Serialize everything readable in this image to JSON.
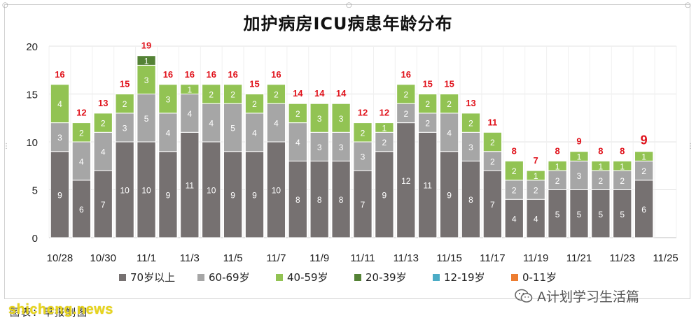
{
  "chart_data": {
    "type": "bar",
    "stacked": true,
    "title": "加护病房ICU病患年龄分布",
    "xlabel": "",
    "ylabel": "",
    "ylim": [
      0,
      20
    ],
    "yticks": [
      0,
      5,
      10,
      15,
      20
    ],
    "grid": true,
    "legend_position": "bottom",
    "categories": [
      "10/28",
      "10/29",
      "10/30",
      "10/31",
      "11/1",
      "11/2",
      "11/3",
      "11/4",
      "11/5",
      "11/6",
      "11/7",
      "11/8",
      "11/9",
      "11/10",
      "11/11",
      "11/12",
      "11/13",
      "11/14",
      "11/15",
      "11/16",
      "11/17",
      "11/18",
      "11/19",
      "11/20",
      "11/21",
      "11/22",
      "11/23",
      "11/24",
      "11/25"
    ],
    "xtick_labels": [
      "10/28",
      "10/30",
      "11/1",
      "11/3",
      "11/5",
      "11/7",
      "11/9",
      "11/11",
      "11/13",
      "11/15",
      "11/17",
      "11/19",
      "11/21",
      "11/23",
      "11/25"
    ],
    "xtick_indices": [
      0,
      2,
      4,
      6,
      8,
      10,
      12,
      14,
      16,
      18,
      20,
      22,
      24,
      26,
      28
    ],
    "totals": [
      16,
      12,
      13,
      15,
      19,
      16,
      16,
      16,
      16,
      15,
      16,
      14,
      14,
      14,
      12,
      12,
      16,
      15,
      15,
      13,
      11,
      8,
      7,
      8,
      9,
      8,
      8,
      9,
      null
    ],
    "series": [
      {
        "name": "70岁以上",
        "color": "#767171",
        "values": [
          9,
          6,
          7,
          10,
          10,
          9,
          11,
          10,
          9,
          9,
          10,
          8,
          8,
          8,
          7,
          9,
          12,
          11,
          9,
          8,
          7,
          4,
          4,
          5,
          5,
          5,
          5,
          6,
          0
        ]
      },
      {
        "name": "60-69岁",
        "color": "#a6a6a6",
        "values": [
          3,
          4,
          4,
          3,
          5,
          4,
          4,
          4,
          5,
          4,
          4,
          4,
          3,
          3,
          3,
          2,
          2,
          2,
          4,
          3,
          2,
          2,
          2,
          2,
          3,
          2,
          2,
          2,
          0
        ]
      },
      {
        "name": "40-59岁",
        "color": "#92c353",
        "values": [
          4,
          2,
          2,
          2,
          3,
          3,
          1,
          2,
          2,
          2,
          2,
          2,
          3,
          3,
          2,
          1,
          2,
          2,
          2,
          2,
          2,
          2,
          1,
          1,
          1,
          1,
          1,
          1,
          0
        ]
      },
      {
        "name": "20-39岁",
        "color": "#548235",
        "values": [
          0,
          0,
          0,
          0,
          1,
          0,
          0,
          0,
          0,
          0,
          0,
          0,
          0,
          0,
          0,
          0,
          0,
          0,
          0,
          0,
          0,
          0,
          0,
          0,
          0,
          0,
          0,
          0,
          0
        ]
      },
      {
        "name": "12-19岁",
        "color": "#4bacc6",
        "values": [
          0,
          0,
          0,
          0,
          0,
          0,
          0,
          0,
          0,
          0,
          0,
          0,
          0,
          0,
          0,
          0,
          0,
          0,
          0,
          0,
          0,
          0,
          0,
          0,
          0,
          0,
          0,
          0,
          0
        ]
      },
      {
        "name": "0-11岁",
        "color": "#ed7d31",
        "values": [
          0,
          0,
          0,
          0,
          0,
          0,
          0,
          0,
          0,
          0,
          0,
          0,
          0,
          0,
          0,
          0,
          0,
          0,
          0,
          0,
          0,
          0,
          0,
          0,
          0,
          0,
          0,
          0,
          0
        ]
      }
    ],
    "total_label_color": "#e0121b"
  },
  "footer": {
    "source": "图表：早报制图",
    "watermark_left": "shicheng.news",
    "watermark_right": "A计划学习生活篇"
  }
}
